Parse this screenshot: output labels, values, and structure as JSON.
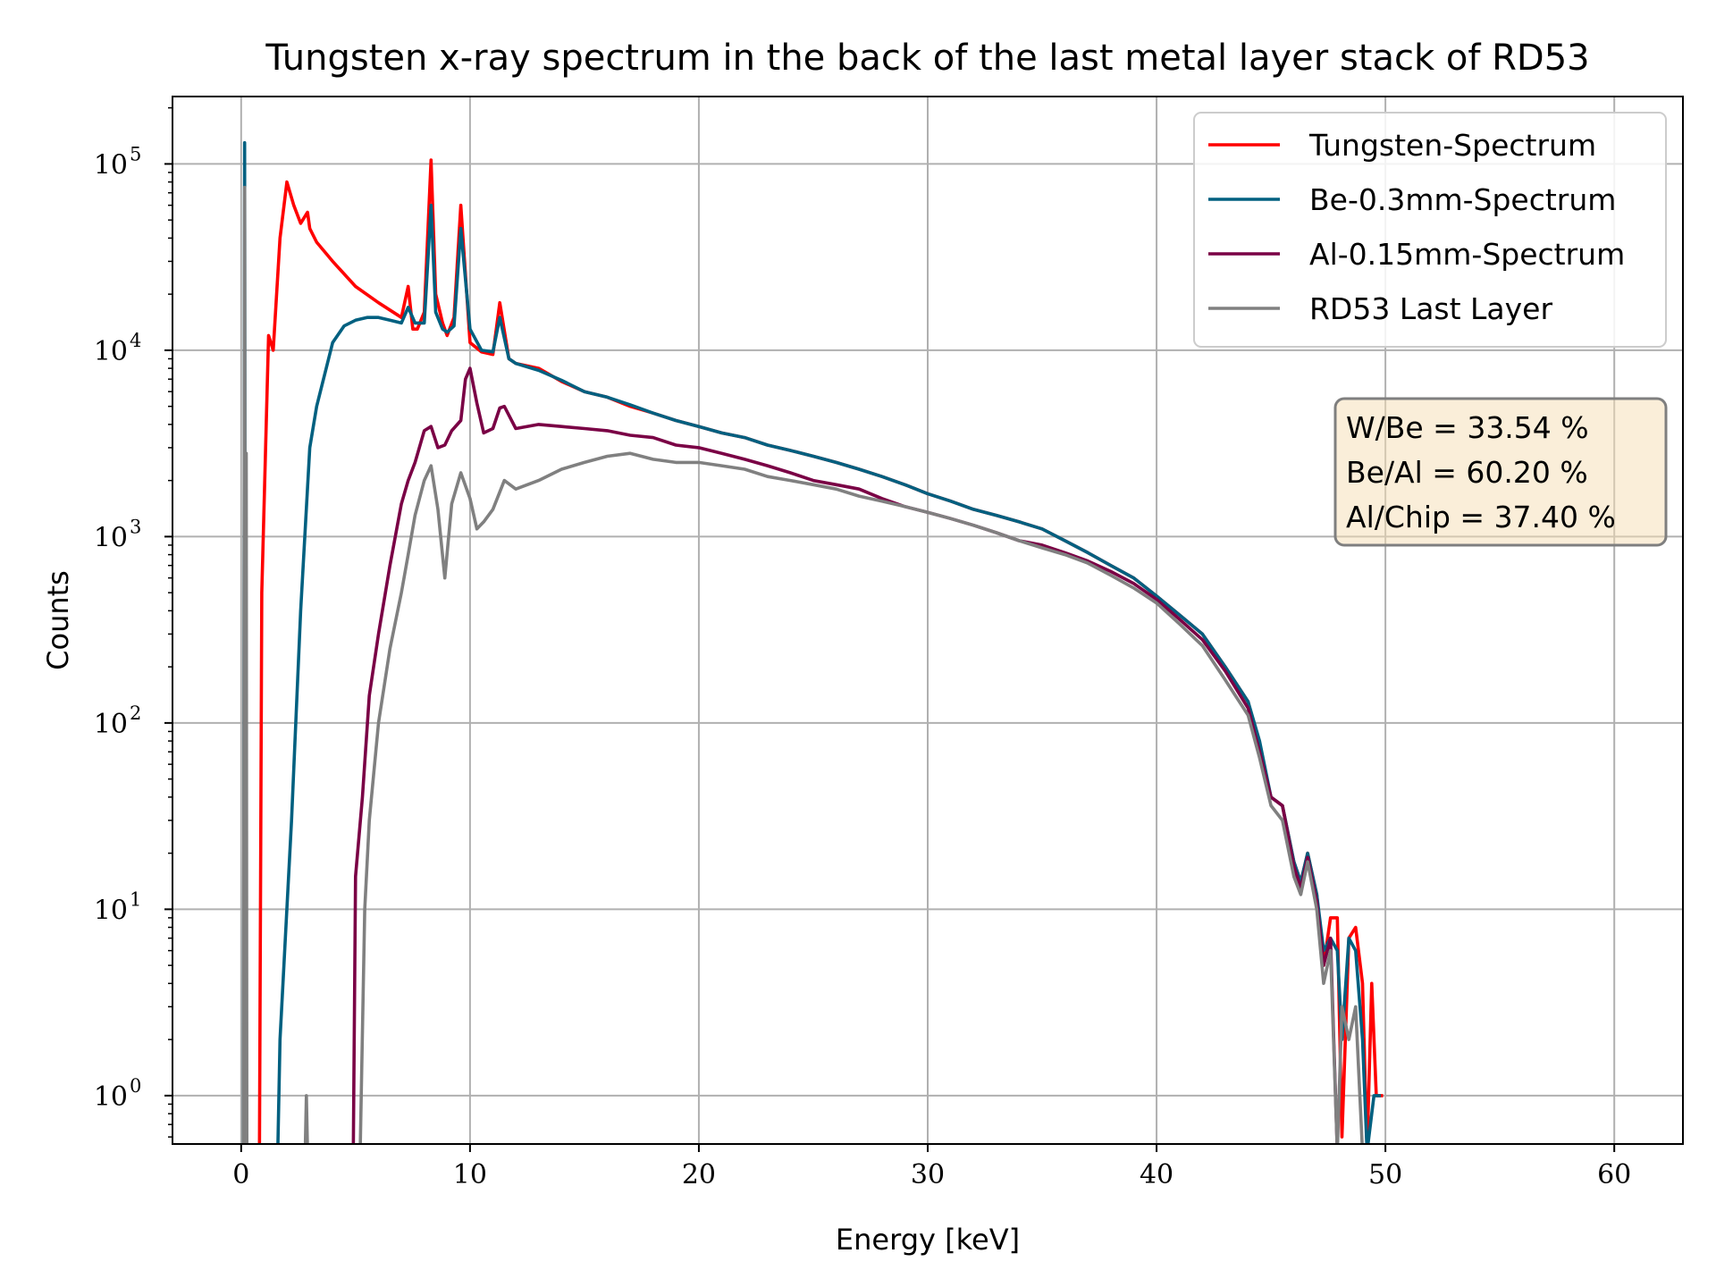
{
  "chart_data": {
    "type": "line",
    "title": "Tungsten x-ray spectrum in the back of the last metal layer stack of RD53",
    "xlabel": "Energy [keV]",
    "ylabel": "Counts",
    "xlim": [
      -3,
      63
    ],
    "ylim": [
      0.55,
      230000
    ],
    "yscale": "log",
    "grid": true,
    "legend_position": "top-right",
    "x_ticks": [
      0,
      10,
      20,
      30,
      40,
      50,
      60
    ],
    "x_tick_labels": [
      "0",
      "10",
      "20",
      "30",
      "40",
      "50",
      "60"
    ],
    "y_ticks": [
      1,
      10,
      100,
      1000,
      10000,
      100000
    ],
    "y_tick_labels": [
      {
        "base": "10",
        "exp": "0"
      },
      {
        "base": "10",
        "exp": "1"
      },
      {
        "base": "10",
        "exp": "2"
      },
      {
        "base": "10",
        "exp": "3"
      },
      {
        "base": "10",
        "exp": "4"
      },
      {
        "base": "10",
        "exp": "5"
      }
    ],
    "annotation": [
      "W/Be = 33.54 %",
      "Be/Al = 60.20 %",
      "Al/Chip = 37.40 %"
    ],
    "series": [
      {
        "name": "Tungsten-Spectrum",
        "color": "#ff0000",
        "x": [
          0.8,
          0.9,
          1.2,
          1.4,
          1.7,
          2.0,
          2.3,
          2.6,
          2.9,
          3.0,
          3.3,
          4.0,
          5.0,
          6.0,
          7.0,
          7.3,
          7.5,
          7.7,
          8.0,
          8.3,
          8.5,
          8.8,
          9.0,
          9.3,
          9.6,
          10.0,
          10.5,
          11.0,
          11.3,
          11.7,
          12.0,
          13,
          14,
          15,
          16,
          17,
          18,
          19,
          20,
          21,
          22,
          23,
          24,
          25,
          26,
          27,
          28,
          29,
          30,
          31,
          32,
          33,
          34,
          35,
          36,
          37,
          38,
          39,
          40,
          41,
          42,
          43,
          44,
          44.5,
          45,
          45.5,
          46,
          46.3,
          46.6,
          47,
          47.3,
          47.6,
          47.9,
          48.1,
          48.4,
          48.7,
          49.0,
          49.2,
          49.4,
          49.6,
          49.9
        ],
        "y": [
          0.5,
          500,
          12000,
          10000,
          40000,
          80000,
          60000,
          48000,
          55000,
          45000,
          38000,
          30000,
          22000,
          18000,
          15000,
          22000,
          13000,
          13000,
          16000,
          105000,
          20000,
          14000,
          12000,
          15000,
          60000,
          11000,
          9800,
          9500,
          18000,
          9000,
          8500,
          8000,
          6800,
          6000,
          5600,
          5000,
          4600,
          4200,
          3900,
          3600,
          3400,
          3100,
          2900,
          2700,
          2500,
          2300,
          2100,
          1900,
          1700,
          1550,
          1400,
          1300,
          1200,
          1100,
          950,
          820,
          700,
          600,
          480,
          380,
          300,
          200,
          130,
          70,
          40,
          36,
          18,
          14,
          20,
          12,
          5,
          9,
          9,
          0.6,
          7,
          8,
          4,
          0.5,
          4,
          1,
          1
        ]
      },
      {
        "name": "Be-0.3mm-Spectrum",
        "color": "#006080",
        "x": [
          0.1,
          0.15,
          0.2,
          1.6,
          1.7,
          2.2,
          2.6,
          3.0,
          3.3,
          4.0,
          4.5,
          5.0,
          5.5,
          6.0,
          6.5,
          7.0,
          7.3,
          7.6,
          8.0,
          8.3,
          8.5,
          8.8,
          9.0,
          9.3,
          9.6,
          10.0,
          10.5,
          11.0,
          11.3,
          11.7,
          12.0,
          13,
          14,
          15,
          16,
          17,
          18,
          19,
          20,
          21,
          22,
          23,
          24,
          25,
          26,
          27,
          28,
          29,
          30,
          31,
          32,
          33,
          34,
          35,
          36,
          37,
          38,
          39,
          40,
          41,
          42,
          43,
          44,
          44.5,
          45,
          45.5,
          46,
          46.3,
          46.6,
          47,
          47.3,
          47.6,
          47.9,
          48.1,
          48.4,
          48.7,
          49.0,
          49.2,
          49.5,
          49.8
        ],
        "y": [
          0.5,
          130000,
          0.5,
          0.5,
          2,
          30,
          400,
          3000,
          5000,
          11000,
          13500,
          14500,
          15000,
          15000,
          14500,
          14000,
          17000,
          14000,
          14000,
          60000,
          16000,
          13000,
          12500,
          13500,
          45000,
          13000,
          10000,
          9800,
          15000,
          9000,
          8500,
          7800,
          6900,
          6000,
          5600,
          5100,
          4600,
          4200,
          3900,
          3600,
          3400,
          3100,
          2900,
          2700,
          2500,
          2300,
          2100,
          1900,
          1700,
          1550,
          1400,
          1300,
          1200,
          1100,
          950,
          820,
          700,
          600,
          480,
          380,
          300,
          200,
          130,
          80,
          40,
          36,
          18,
          14,
          20,
          12,
          6,
          7,
          6,
          2,
          7,
          6,
          2,
          0.5,
          1,
          1
        ]
      },
      {
        "name": "Al-0.15mm-Spectrum",
        "color": "#7a0045",
        "x": [
          4.9,
          5.0,
          5.3,
          5.6,
          6.0,
          6.5,
          7.0,
          7.3,
          7.6,
          8.0,
          8.3,
          8.6,
          8.9,
          9.2,
          9.6,
          9.8,
          10.0,
          10.3,
          10.6,
          11.0,
          11.3,
          11.5,
          12.0,
          13,
          14,
          15,
          16,
          17,
          18,
          19,
          20,
          21,
          22,
          23,
          24,
          25,
          26,
          27,
          28,
          29,
          30,
          31,
          32,
          33,
          34,
          35,
          36,
          37,
          38,
          39,
          40,
          41,
          42,
          43,
          44,
          44.5,
          45,
          45.5,
          46,
          46.3,
          46.6,
          47,
          47.3,
          47.6,
          47.9
        ],
        "y": [
          0.5,
          15,
          40,
          140,
          300,
          700,
          1500,
          2000,
          2500,
          3700,
          3900,
          3000,
          3100,
          3700,
          4200,
          7000,
          8000,
          5200,
          3600,
          3800,
          4900,
          5000,
          3800,
          4000,
          3900,
          3800,
          3700,
          3500,
          3400,
          3100,
          3000,
          2800,
          2600,
          2400,
          2200,
          2000,
          1900,
          1800,
          1600,
          1450,
          1350,
          1250,
          1150,
          1050,
          950,
          900,
          820,
          740,
          650,
          560,
          460,
          360,
          280,
          190,
          120,
          70,
          40,
          36,
          17,
          13,
          19,
          11,
          5,
          7,
          0.5
        ]
      },
      {
        "name": "RD53 Last Layer",
        "color": "#808080",
        "x": [
          0.1,
          0.15,
          0.2,
          0.22,
          0.25,
          2.8,
          2.85,
          2.9,
          5.2,
          5.4,
          5.6,
          6.0,
          6.5,
          7.0,
          7.3,
          7.6,
          8.0,
          8.3,
          8.6,
          8.9,
          9.2,
          9.6,
          10.0,
          10.3,
          10.6,
          11.0,
          11.5,
          12.0,
          13,
          14,
          15,
          16,
          17,
          18,
          19,
          20,
          21,
          22,
          23,
          24,
          25,
          26,
          27,
          28,
          29,
          30,
          31,
          32,
          33,
          34,
          35,
          36,
          37,
          38,
          39,
          40,
          41,
          42,
          43,
          44,
          44.5,
          45,
          45.5,
          46,
          46.3,
          46.6,
          47,
          47.3,
          47.6,
          47.9,
          48.1,
          48.4,
          48.7,
          49.0,
          49.2
        ],
        "y": [
          0.5,
          75000,
          0.5,
          2800,
          0.5,
          0.5,
          1,
          0.5,
          0.5,
          10,
          30,
          100,
          250,
          500,
          800,
          1300,
          2000,
          2400,
          1400,
          600,
          1500,
          2200,
          1600,
          1100,
          1200,
          1400,
          2000,
          1800,
          2000,
          2300,
          2500,
          2700,
          2800,
          2600,
          2500,
          2500,
          2400,
          2300,
          2100,
          2000,
          1900,
          1800,
          1650,
          1550,
          1450,
          1350,
          1250,
          1150,
          1050,
          950,
          870,
          800,
          720,
          620,
          530,
          440,
          340,
          260,
          170,
          110,
          65,
          36,
          30,
          15,
          12,
          18,
          10,
          4,
          6,
          0.5,
          3,
          2,
          3,
          0.5,
          0.5
        ]
      }
    ]
  }
}
